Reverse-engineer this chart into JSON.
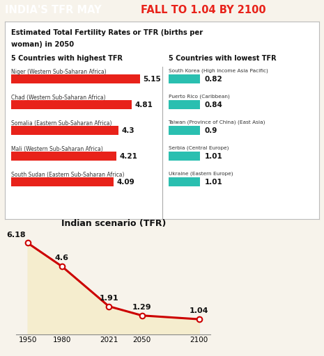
{
  "title_black": "INDIA'S TFR MAY ",
  "title_red": "FALL TO 1.04 BY 2100",
  "subtitle_line1": "Estimated Total Fertility Rates or TFR (births per",
  "subtitle_line2": "woman) in 2050",
  "high_header": "5 Countries with highest TFR",
  "low_header": "5 Countries with lowest TFR",
  "high_countries": [
    {
      "name": "Niger (Western Sub-Saharan Africa)",
      "value": 5.15
    },
    {
      "name": "Chad (Western Sub-Saharan Africa)",
      "value": 4.81
    },
    {
      "name": "Somalia (Eastern Sub-Saharan Africa)",
      "value": 4.3
    },
    {
      "name": "Mali (Western Sub-Saharan Africa)",
      "value": 4.21
    },
    {
      "name": "South Sudan (Eastern Sub-Saharan Africa)",
      "value": 4.09
    }
  ],
  "low_countries": [
    {
      "name": "South Korea (High income Asia Pacific)",
      "value": 0.82
    },
    {
      "name": "Puerto Rico (Caribbean)",
      "value": 0.84
    },
    {
      "name": "Taiwan (Province of China) (East Asia)",
      "value": 0.9
    },
    {
      "name": "Serbia (Central Europe)",
      "value": 1.01
    },
    {
      "name": "Ukraine (Eastern Europe)",
      "value": 1.01
    }
  ],
  "high_bar_color": "#e8221a",
  "low_bar_color": "#2abfb0",
  "india_header": "Indian scenario (TFR)",
  "india_years": [
    1950,
    1980,
    2021,
    2050,
    2100
  ],
  "india_values": [
    6.18,
    4.6,
    1.91,
    1.29,
    1.04
  ],
  "line_color": "#cc0000",
  "fill_color": "#f5edce",
  "bg_color": "#f7f3eb",
  "title_bg": "#1a1a1a",
  "panel_bg": "#ffffff",
  "border_color": "#bbbbbb",
  "title_white": "#ffffff",
  "title_red_color": "#e8221a"
}
